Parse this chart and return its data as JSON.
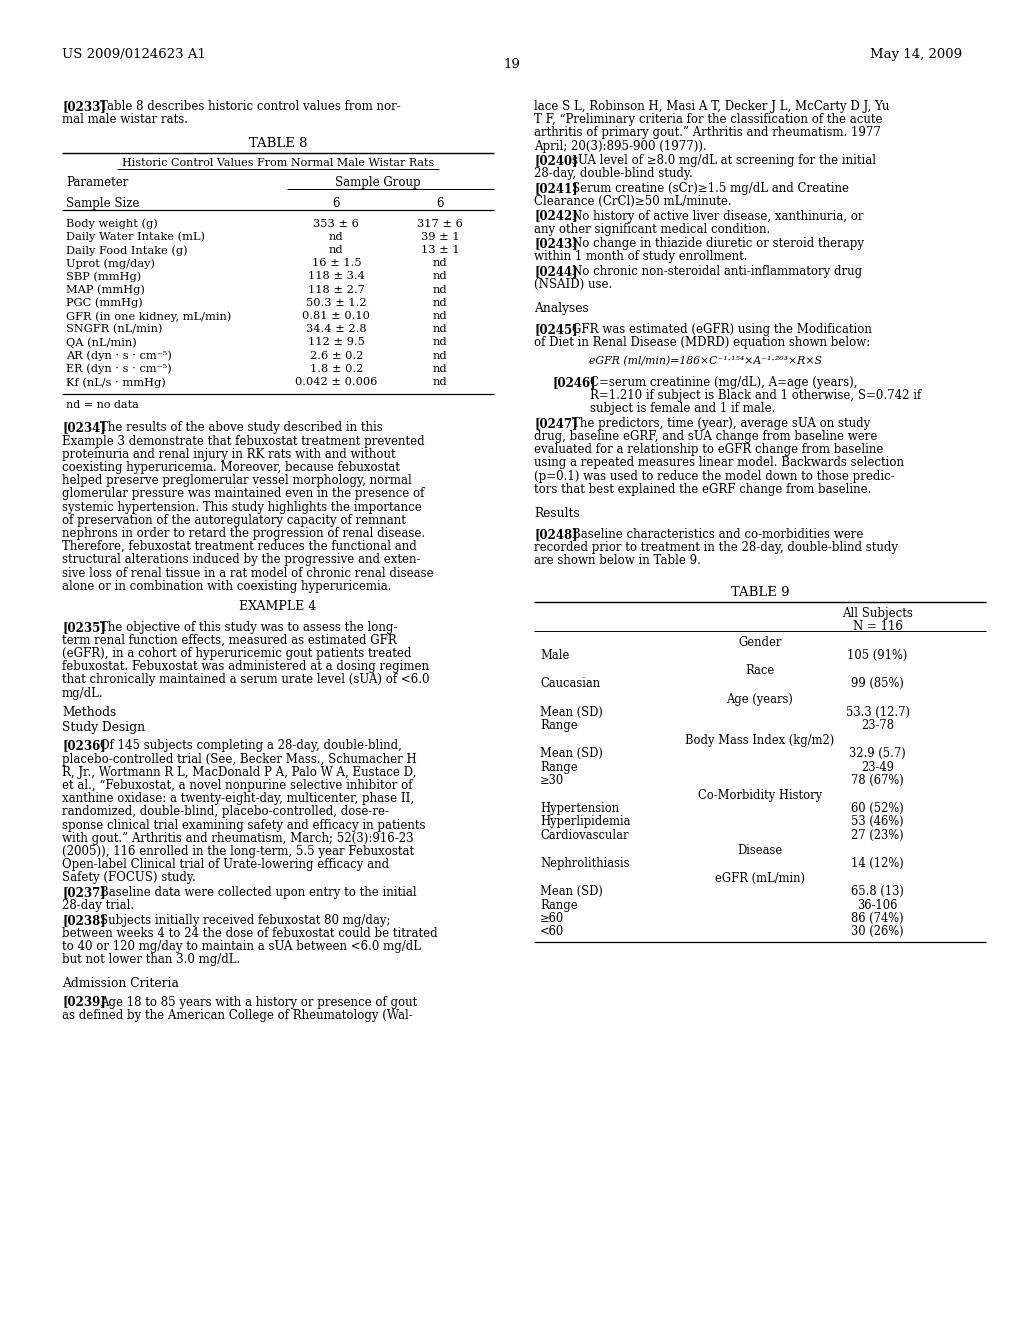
{
  "header_left": "US 2009/0124623 A1",
  "header_right": "May 14, 2009",
  "page_number": "19",
  "bg_color": "#ffffff",
  "left_col": {
    "para233_tag": "[0233]",
    "para233_text": "Table 8 describes historic control values from nor-\nmal male wistar rats.",
    "table8_title": "TABLE 8",
    "table8_subtitle": "Historic Control Values From Normal Male Wistar Rats",
    "table8_col1": "Parameter",
    "table8_col2": "Sample Group",
    "table8_sample_size_label": "Sample Size",
    "table8_sample_size_vals": [
      "6",
      "6"
    ],
    "table8_rows": [
      [
        "Body weight (g)",
        "353 ± 6",
        "317 ± 6"
      ],
      [
        "Daily Water Intake (mL)",
        "nd",
        "39 ± 1"
      ],
      [
        "Daily Food Intake (g)",
        "nd",
        "13 ± 1"
      ],
      [
        "Uprot (mg/day)",
        "16 ± 1.5",
        "nd"
      ],
      [
        "SBP (mmHg)",
        "118 ± 3.4",
        "nd"
      ],
      [
        "MAP (mmHg)",
        "118 ± 2.7",
        "nd"
      ],
      [
        "PGC (mmHg)",
        "50.3 ± 1.2",
        "nd"
      ],
      [
        "GFR (in one kidney, mL/min)",
        "0.81 ± 0.10",
        "nd"
      ],
      [
        "SNGFR (nL/min)",
        "34.4 ± 2.8",
        "nd"
      ],
      [
        "QA (nL/min)",
        "112 ± 9.5",
        "nd"
      ],
      [
        "AR (dyn · s · cm⁻⁵)",
        "2.6 ± 0.2",
        "nd"
      ],
      [
        "ER (dyn · s · cm⁻⁵)",
        "1.8 ± 0.2",
        "nd"
      ],
      [
        "Kf (nL/s · mmHg)",
        "0.042 ± 0.006",
        "nd"
      ]
    ],
    "table8_footnote": "nd = no data",
    "para234_tag": "[0234]",
    "para234_lines": [
      "The results of the above study described in this",
      "Example 3 demonstrate that febuxostat treatment prevented",
      "proteinuria and renal injury in RK rats with and without",
      "coexisting hyperuricemia. Moreover, because febuxostat",
      "helped preserve preglomerular vessel morphology, normal",
      "glomerular pressure was maintained even in the presence of",
      "systemic hypertension. This study highlights the importance",
      "of preservation of the autoregulatory capacity of remnant",
      "nephrons in order to retard the progression of renal disease.",
      "Therefore, febuxostat treatment reduces the functional and",
      "structural alterations induced by the progressive and exten-",
      "sive loss of renal tissue in a rat model of chronic renal disease",
      "alone or in combination with coexisting hyperuricemia."
    ],
    "example4_header": "EXAMPLE 4",
    "para235_tag": "[0235]",
    "para235_lines": [
      "The objective of this study was to assess the long-",
      "term renal function effects, measured as estimated GFR",
      "(eGFR), in a cohort of hyperuricemic gout patients treated",
      "febuxostat. Febuxostat was administered at a dosing regimen",
      "that chronically maintained a serum urate level (sUA) of <6.0",
      "mg/dL."
    ],
    "methods_header": "Methods",
    "study_design_header": "Study Design",
    "para236_tag": "[0236]",
    "para236_lines": [
      "Of 145 subjects completing a 28-day, double-blind,",
      "placebo-controlled trial (See, Becker Mass., Schumacher H",
      "R, Jr., Wortmann R L, MacDonald P A, Palo W A, Eustace D,",
      "et al., “Febuxostat, a novel nonpurine selective inhibitor of",
      "xanthine oxidase: a twenty-eight-day, multicenter, phase II,",
      "randomized, double-blind, placebo-controlled, dose-re-",
      "sponse clinical trial examining safety and efficacy in patients",
      "with gout.” Arthritis and rheumatism, March; 52(3):916-23",
      "(2005)), 116 enrolled in the long-term, 5.5 year Febuxostat",
      "Open-label Clinical trial of Urate-lowering efficacy and",
      "Safety (FOCUS) study."
    ],
    "para237_tag": "[0237]",
    "para237_lines": [
      "Baseline data were collected upon entry to the initial",
      "28-day trial."
    ],
    "para238_tag": "[0238]",
    "para238_lines": [
      "Subjects initially received febuxostat 80 mg/day;",
      "between weeks 4 to 24 the dose of febuxostat could be titrated",
      "to 40 or 120 mg/day to maintain a sUA between <6.0 mg/dL",
      "but not lower than 3.0 mg/dL."
    ],
    "admission_header": "Admission Criteria",
    "para239_tag": "[0239]",
    "para239_lines": [
      "Age 18 to 85 years with a history or presence of gout",
      "as defined by the American College of Rheumatology (Wal-"
    ]
  },
  "right_col": {
    "para239_cont_lines": [
      "lace S L, Robinson H, Masi A T, Decker J L, McCarty D J, Yu",
      "T F, “Preliminary criteria for the classification of the acute",
      "arthritis of primary gout.” Arthritis and rheumatism. 1977",
      "April; 20(3):895-900 (1977))."
    ],
    "para240_tag": "[0240]",
    "para240_lines": [
      "sUA level of ≥8.0 mg/dL at screening for the initial",
      "28-day, double-blind study."
    ],
    "para241_tag": "[0241]",
    "para241_lines": [
      "Serum creatine (sCr)≥1.5 mg/dL and Creatine",
      "Clearance (CrCl)≥50 mL/minute."
    ],
    "para242_tag": "[0242]",
    "para242_lines": [
      "No history of active liver disease, xanthinuria, or",
      "any other significant medical condition."
    ],
    "para243_tag": "[0243]",
    "para243_lines": [
      "No change in thiazide diuretic or steroid therapy",
      "within 1 month of study enrollment."
    ],
    "para244_tag": "[0244]",
    "para244_lines": [
      "No chronic non-steroidal anti-inflammatory drug",
      "(NSAID) use."
    ],
    "analyses_header": "Analyses",
    "para245_tag": "[0245]",
    "para245_lines": [
      "GFR was estimated (eGFR) using the Modification",
      "of Diet in Renal Disease (MDRD) equation shown below:"
    ],
    "equation_label": "eGFR (ml/min)=186×C⁻¹·¹⁵⁴×A⁻¹·²⁰³×R×S",
    "para246_tag": "[0246]",
    "para246_lines": [
      "C=serum creatinine (mg/dL), A=age (years),",
      "R=1.210 if subject is Black and 1 otherwise, S=0.742 if",
      "subject is female and 1 if male."
    ],
    "para247_tag": "[0247]",
    "para247_lines": [
      "The predictors, time (year), average sUA on study",
      "drug, baseline eGRF, and sUA change from baseline were",
      "evaluated for a relationship to eGFR change from baseline",
      "using a repeated measures linear model. Backwards selection",
      "(p=0.1) was used to reduce the model down to those predic-",
      "tors that best explained the eGRF change from baseline."
    ],
    "results_header": "Results",
    "para248_tag": "[0248]",
    "para248_lines": [
      "Baseline characteristics and co-morbidities were",
      "recorded prior to treatment in the 28-day, double-blind study",
      "are shown below in Table 9."
    ],
    "table9_title": "TABLE 9",
    "table9_col_header1": "All Subjects",
    "table9_col_header2": "N = 116",
    "table9_sections": [
      {
        "section_title": "Gender",
        "rows": [
          [
            "Male",
            "105 (91%)"
          ]
        ]
      },
      {
        "section_title": "Race",
        "rows": [
          [
            "Caucasian",
            "99 (85%)"
          ]
        ]
      },
      {
        "section_title": "Age (years)",
        "rows": [
          [
            "Mean (SD)",
            "53.3 (12.7)"
          ],
          [
            "Range",
            "23-78"
          ]
        ]
      },
      {
        "section_title": "Body Mass Index (kg/m2)",
        "rows": [
          [
            "Mean (SD)",
            "32.9 (5.7)"
          ],
          [
            "Range",
            "23-49"
          ],
          [
            "≥30",
            "78 (67%)"
          ]
        ]
      },
      {
        "section_title": "Co-Morbidity History",
        "rows": [
          [
            "Hypertension",
            "60 (52%)"
          ],
          [
            "Hyperlipidemia",
            "53 (46%)"
          ],
          [
            "Cardiovascular",
            "27 (23%)"
          ]
        ]
      },
      {
        "section_title": "Disease",
        "rows": [
          [
            "Nephrolithiasis",
            "14 (12%)"
          ]
        ]
      },
      {
        "section_title": "eGFR (mL/min)",
        "rows": [
          [
            "Mean (SD)",
            "65.8 (13)"
          ],
          [
            "Range",
            "36-106"
          ],
          [
            "≥60",
            "86 (74%)"
          ],
          [
            "<60",
            "30 (26%)"
          ]
        ]
      }
    ]
  }
}
